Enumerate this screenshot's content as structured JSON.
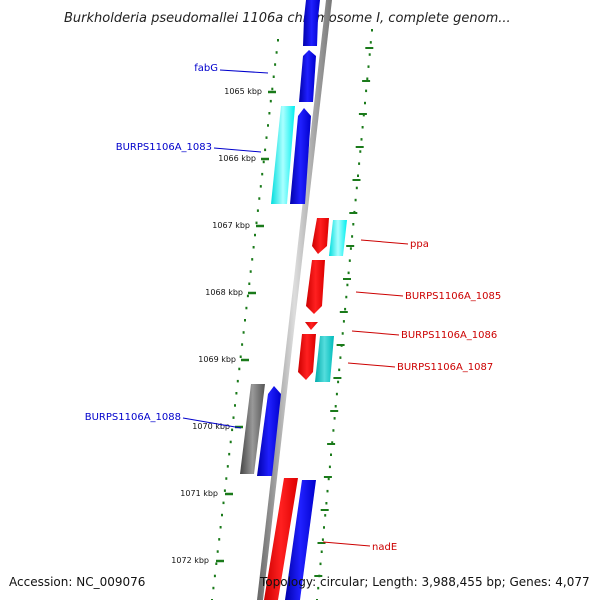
{
  "title": "Burkholderia pseudomallei 1106a chromosome I, complete genom...",
  "accession": "Accession: NC_009076",
  "topology": "Topology: circular; Length: 3,988,455 bp; Genes: 4,077",
  "colors": {
    "forward_cds": "#0000ff",
    "forward_other": "#00ffff",
    "reverse_cds": "#ff0000",
    "reverse_other": "#00cccc",
    "pseudo": "#666666",
    "backbone": "#888888",
    "ticks": "#1a7a1a",
    "forward_label": "#0000cc",
    "reverse_label": "#cc0000"
  },
  "ticks": [
    {
      "label": "1065 kbp"
    },
    {
      "label": "1066 kbp"
    },
    {
      "label": "1067 kbp"
    },
    {
      "label": "1068 kbp"
    },
    {
      "label": "1069 kbp"
    },
    {
      "label": "1070 kbp"
    },
    {
      "label": "1071 kbp"
    },
    {
      "label": "1072 kbp"
    }
  ],
  "gene_labels": [
    {
      "text": "fabG",
      "strand": "forward"
    },
    {
      "text": "BURPS1106A_1083",
      "strand": "forward"
    },
    {
      "text": "ppa",
      "strand": "reverse"
    },
    {
      "text": "BURPS1106A_1085",
      "strand": "reverse"
    },
    {
      "text": "BURPS1106A_1086",
      "strand": "reverse"
    },
    {
      "text": "BURPS1106A_1087",
      "strand": "reverse"
    },
    {
      "text": "BURPS1106A_1088",
      "strand": "forward"
    },
    {
      "text": "nadE",
      "strand": "reverse"
    }
  ]
}
